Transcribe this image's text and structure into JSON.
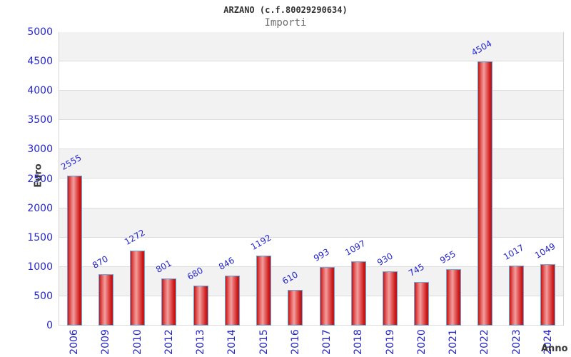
{
  "title": "ARZANO (c.f.80029290634)",
  "subtitle": "Importi",
  "chart_data": {
    "type": "bar",
    "title": "ARZANO (c.f.80029290634)",
    "subtitle": "Importi",
    "xlabel": "Anno",
    "ylabel": "Euro",
    "categories": [
      "2006",
      "2009",
      "2010",
      "2012",
      "2013",
      "2014",
      "2015",
      "2016",
      "2017",
      "2018",
      "2019",
      "2020",
      "2021",
      "2022",
      "2023",
      "2024"
    ],
    "values": [
      2555,
      870,
      1272,
      801,
      680,
      846,
      1192,
      610,
      993,
      1097,
      930,
      745,
      955,
      4504,
      1017,
      1049
    ],
    "ylim": [
      0,
      5000
    ],
    "ytick_step": 500,
    "legend": "none",
    "grid": "horizontal-bands",
    "band_colors": [
      "#f2f2f2",
      "#ffffff"
    ],
    "colors": {
      "bar_border": "#64a8dc",
      "bar_edge_red": "#c81414",
      "bar_center_highlight": "#f0a0a0",
      "tick_label_blue": "#2525cd",
      "gridline": "#dcdcdc",
      "plot_border": "#d4d4d4",
      "title_color": "#333333",
      "subtitle_color": "#707070",
      "axis_title_color": "#3a3a3a"
    }
  }
}
